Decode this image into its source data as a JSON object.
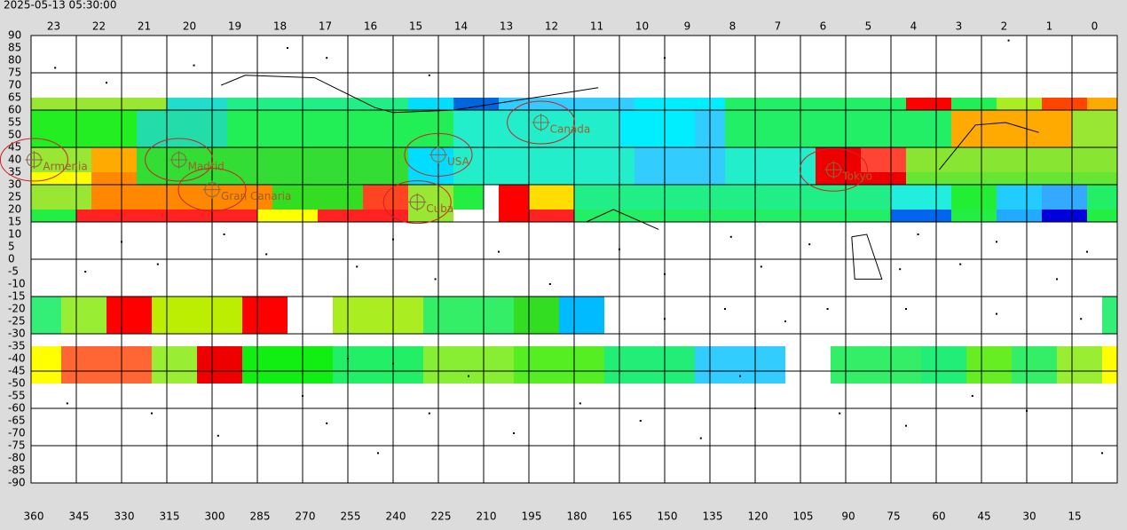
{
  "chart_data": {
    "type": "heatmap",
    "title": "2025-05-13 05:30:00",
    "top_labels": [
      "23",
      "22",
      "21",
      "20",
      "19",
      "18",
      "17",
      "16",
      "15",
      "14",
      "13",
      "12",
      "11",
      "10",
      "9",
      "8",
      "7",
      "6",
      "5",
      "4",
      "3",
      "2",
      "1",
      "0"
    ],
    "xlim": [
      360,
      0
    ],
    "xticks": [
      360,
      345,
      330,
      315,
      300,
      285,
      270,
      255,
      240,
      225,
      210,
      195,
      180,
      165,
      150,
      135,
      120,
      105,
      90,
      75,
      60,
      45,
      30,
      15
    ],
    "ylim": [
      -90,
      90
    ],
    "yticks": [
      90,
      85,
      80,
      75,
      70,
      65,
      60,
      55,
      50,
      45,
      40,
      35,
      30,
      25,
      20,
      15,
      10,
      5,
      0,
      -5,
      -10,
      -15,
      -20,
      -25,
      -30,
      -35,
      -40,
      -45,
      -50,
      -55,
      -60,
      -65,
      -70,
      -75,
      -80,
      -85,
      -90
    ],
    "cells": [
      {
        "dec": [
          60,
          65
        ],
        "runs": [
          [
            360,
            315,
            "#99e633"
          ],
          [
            315,
            295,
            "#22ddcc"
          ],
          [
            295,
            235,
            "#22ee88"
          ],
          [
            235,
            220,
            "#00ddff"
          ],
          [
            220,
            205,
            "#0066dd"
          ],
          [
            205,
            160,
            "#33ccff"
          ],
          [
            160,
            130,
            "#00eeff"
          ],
          [
            130,
            70,
            "#22ee66"
          ],
          [
            70,
            55,
            "#ff0000"
          ],
          [
            55,
            40,
            "#22ee55"
          ],
          [
            40,
            25,
            "#aaee22"
          ],
          [
            25,
            10,
            "#ff4400"
          ],
          [
            10,
            0,
            "#ffaa00"
          ]
        ]
      },
      {
        "dec": [
          45,
          60
        ],
        "runs": [
          [
            360,
            325,
            "#22ee22"
          ],
          [
            325,
            295,
            "#22ddaa"
          ],
          [
            295,
            220,
            "#22ee55"
          ],
          [
            220,
            165,
            "#22eecc"
          ],
          [
            165,
            140,
            "#00eeff"
          ],
          [
            140,
            130,
            "#33ccff"
          ],
          [
            130,
            55,
            "#22ee66"
          ],
          [
            55,
            15,
            "#ffaa00"
          ],
          [
            15,
            0,
            "#99e633"
          ]
        ]
      },
      {
        "dec": [
          35,
          45
        ],
        "runs": [
          [
            360,
            340,
            "#99e633"
          ],
          [
            340,
            325,
            "#ffaa00"
          ],
          [
            325,
            235,
            "#33dd33"
          ],
          [
            235,
            220,
            "#00ddff"
          ],
          [
            220,
            160,
            "#22eecc"
          ],
          [
            160,
            130,
            "#33ccff"
          ],
          [
            130,
            100,
            "#22eecc"
          ],
          [
            100,
            85,
            "#ee0000"
          ],
          [
            85,
            70,
            "#ff4433"
          ],
          [
            70,
            0,
            "#88e633"
          ]
        ]
      },
      {
        "dec": [
          30,
          35
        ],
        "runs": [
          [
            360,
            340,
            "#ffff00"
          ],
          [
            340,
            325,
            "#ff8800"
          ],
          [
            325,
            235,
            "#33dd33"
          ],
          [
            235,
            220,
            "#00ddff"
          ],
          [
            220,
            160,
            "#22eecc"
          ],
          [
            160,
            130,
            "#33ccff"
          ],
          [
            130,
            100,
            "#22eecc"
          ],
          [
            100,
            70,
            "#ee0000"
          ],
          [
            70,
            0,
            "#66e633"
          ]
        ]
      },
      {
        "dec": [
          20,
          30
        ],
        "runs": [
          [
            360,
            340,
            "#99e633"
          ],
          [
            340,
            280,
            "#ff8800"
          ],
          [
            280,
            250,
            "#33dd22"
          ],
          [
            250,
            235,
            "#ff4422"
          ],
          [
            235,
            220,
            "#99e633"
          ],
          [
            220,
            210,
            "#22ee44"
          ],
          [
            210,
            205,
            "#ffffff"
          ],
          [
            205,
            195,
            "#ff0000"
          ],
          [
            195,
            180,
            "#ffdd00"
          ],
          [
            180,
            75,
            "#22ee88"
          ],
          [
            75,
            55,
            "#22eedd"
          ],
          [
            55,
            40,
            "#22ee33"
          ],
          [
            40,
            25,
            "#22ccff"
          ],
          [
            25,
            10,
            "#33aaff"
          ],
          [
            10,
            0,
            "#22ee66"
          ]
        ]
      },
      {
        "dec": [
          15,
          20
        ],
        "runs": [
          [
            360,
            345,
            "#22ee44"
          ],
          [
            345,
            285,
            "#ff2222"
          ],
          [
            285,
            265,
            "#ffff00"
          ],
          [
            265,
            235,
            "#ff2222"
          ],
          [
            235,
            220,
            "#99e633"
          ],
          [
            220,
            205,
            "#ffffff"
          ],
          [
            205,
            195,
            "#ff0000"
          ],
          [
            195,
            180,
            "#ff2222"
          ],
          [
            180,
            75,
            "#22ee66"
          ],
          [
            75,
            55,
            "#0066ee"
          ],
          [
            55,
            40,
            "#22ee44"
          ],
          [
            40,
            25,
            "#22aaff"
          ],
          [
            25,
            10,
            "#0000dd"
          ],
          [
            10,
            0,
            "#22ee44"
          ]
        ]
      },
      {
        "dec": [
          -30,
          -15
        ],
        "runs": [
          [
            360,
            350,
            "#33ee77"
          ],
          [
            350,
            335,
            "#99ee33"
          ],
          [
            335,
            320,
            "#ff0000"
          ],
          [
            320,
            290,
            "#bbee00"
          ],
          [
            290,
            275,
            "#ff0000"
          ],
          [
            260,
            230,
            "#aaee22"
          ],
          [
            230,
            200,
            "#33ee66"
          ],
          [
            200,
            185,
            "#33dd22"
          ],
          [
            185,
            170,
            "#00bbff"
          ],
          [
            5,
            0,
            "#33ee77"
          ]
        ]
      },
      {
        "dec": [
          -50,
          -35
        ],
        "runs": [
          [
            360,
            350,
            "#ffff00"
          ],
          [
            350,
            320,
            "#ff6633"
          ],
          [
            320,
            305,
            "#99ee33"
          ],
          [
            305,
            290,
            "#ee0000"
          ],
          [
            290,
            260,
            "#11ee11"
          ],
          [
            260,
            230,
            "#22ee66"
          ],
          [
            230,
            200,
            "#88ee33"
          ],
          [
            200,
            170,
            "#55ee22"
          ],
          [
            170,
            140,
            "#22ee77"
          ],
          [
            140,
            110,
            "#33ccff"
          ],
          [
            95,
            65,
            "#33ee66"
          ],
          [
            65,
            50,
            "#22ee77"
          ],
          [
            50,
            35,
            "#66ee22"
          ],
          [
            35,
            20,
            "#33ee66"
          ],
          [
            20,
            5,
            "#99ee33"
          ],
          [
            5,
            0,
            "#ffff00"
          ]
        ]
      }
    ],
    "stars": [
      [
        352,
        77
      ],
      [
        306,
        78
      ],
      [
        335,
        71
      ],
      [
        275,
        85
      ],
      [
        262,
        81
      ],
      [
        228,
        74
      ],
      [
        150,
        81
      ],
      [
        342,
        -5
      ],
      [
        330,
        7
      ],
      [
        318,
        -2
      ],
      [
        296,
        10
      ],
      [
        282,
        2
      ],
      [
        252,
        -3
      ],
      [
        240,
        8
      ],
      [
        226,
        -8
      ],
      [
        205,
        3
      ],
      [
        188,
        -10
      ],
      [
        165,
        4
      ],
      [
        150,
        -6
      ],
      [
        128,
        9
      ],
      [
        118,
        -3
      ],
      [
        102,
        6
      ],
      [
        72,
        -4
      ],
      [
        66,
        10
      ],
      [
        52,
        -2
      ],
      [
        40,
        7
      ],
      [
        20,
        -8
      ],
      [
        10,
        3
      ],
      [
        348,
        -58
      ],
      [
        320,
        -62
      ],
      [
        298,
        -71
      ],
      [
        262,
        -66
      ],
      [
        245,
        -78
      ],
      [
        228,
        -62
      ],
      [
        200,
        -70
      ],
      [
        178,
        -58
      ],
      [
        158,
        -65
      ],
      [
        138,
        -72
      ],
      [
        120,
        -60
      ],
      [
        92,
        -62
      ],
      [
        70,
        -67
      ],
      [
        48,
        -55
      ],
      [
        30,
        -61
      ],
      [
        5,
        -78
      ],
      [
        12,
        -24
      ],
      [
        40,
        -22
      ],
      [
        70,
        -20
      ],
      [
        110,
        -25
      ],
      [
        130,
        -20
      ],
      [
        150,
        -24
      ],
      [
        270,
        -55
      ],
      [
        255,
        -40
      ],
      [
        240,
        -42
      ],
      [
        215,
        -47
      ],
      [
        135,
        -45
      ],
      [
        125,
        -47
      ],
      [
        96,
        -20
      ],
      [
        36,
        88
      ]
    ],
    "constellations": [
      [
        [
          297,
          70
        ],
        [
          289,
          74
        ],
        [
          266,
          73
        ],
        [
          246,
          61
        ],
        [
          240,
          59
        ],
        [
          220,
          60
        ],
        [
          172,
          69
        ]
      ],
      [
        [
          88,
          9
        ],
        [
          83,
          10
        ],
        [
          78,
          -8
        ],
        [
          87,
          -8
        ],
        [
          88,
          9
        ]
      ],
      [
        [
          59,
          36
        ],
        [
          47,
          54
        ],
        [
          37,
          55
        ],
        [
          26,
          51
        ]
      ],
      [
        [
          176,
          15
        ],
        [
          167,
          20
        ],
        [
          152,
          12
        ]
      ]
    ],
    "places": [
      {
        "name": "Armenia",
        "ra": 359,
        "dec": 40
      },
      {
        "name": "Madrid",
        "ra": 311,
        "dec": 40
      },
      {
        "name": "Gran Canaria",
        "ra": 300,
        "dec": 28
      },
      {
        "name": "USA",
        "ra": 225,
        "dec": 42
      },
      {
        "name": "Canada",
        "ra": 191,
        "dec": 55
      },
      {
        "name": "Cuba",
        "ra": 232,
        "dec": 23
      },
      {
        "name": "Tokyo",
        "ra": 94,
        "dec": 36
      }
    ]
  }
}
